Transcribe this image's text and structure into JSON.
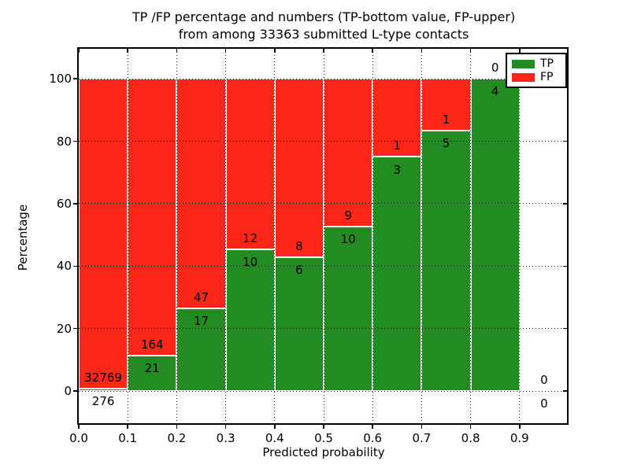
{
  "figure": {
    "title_line1": "TP /FP percentage and numbers (TP-bottom value, FP-upper)",
    "title_line2": "from among 33363 submitted L-type contacts"
  },
  "chart_data": {
    "type": "bar",
    "stacked": true,
    "title": "TP /FP percentage and numbers (TP-bottom value, FP-upper) from among 33363 submitted L-type contacts",
    "xlabel": "Predicted probability",
    "ylabel": "Percentage",
    "total_contacts": 33363,
    "bin_edges": [
      0.0,
      0.1,
      0.2,
      0.3,
      0.4,
      0.5,
      0.6,
      0.7,
      0.8,
      0.9,
      1.0
    ],
    "bin_centers": [
      0.05,
      0.15,
      0.25,
      0.35,
      0.45,
      0.55,
      0.65,
      0.75,
      0.85,
      0.95
    ],
    "series": [
      {
        "name": "TP",
        "color": "#228b22",
        "counts": [
          276,
          21,
          17,
          10,
          6,
          10,
          3,
          5,
          4,
          0
        ]
      },
      {
        "name": "FP",
        "color": "#fb2618",
        "counts": [
          32769,
          164,
          47,
          12,
          8,
          9,
          1,
          1,
          0,
          0
        ]
      }
    ],
    "tp_percent": [
      0.84,
      11.35,
      26.56,
      45.45,
      42.86,
      52.63,
      75.0,
      83.33,
      100.0,
      null
    ],
    "bar_total_percent": 100,
    "xtick_labels": [
      "0.0",
      "0.1",
      "0.2",
      "0.3",
      "0.4",
      "0.5",
      "0.6",
      "0.7",
      "0.8",
      "0.9"
    ],
    "ytick_values": [
      0,
      20,
      40,
      60,
      80,
      100
    ],
    "xlim": [
      0.0,
      1.0
    ],
    "ylim": [
      -10.8,
      109.6
    ],
    "grid": "dotted",
    "legend": {
      "position": "upper right",
      "entries": [
        {
          "label": "TP",
          "color": "#228b22"
        },
        {
          "label": "FP",
          "color": "#fb2618"
        }
      ]
    }
  }
}
